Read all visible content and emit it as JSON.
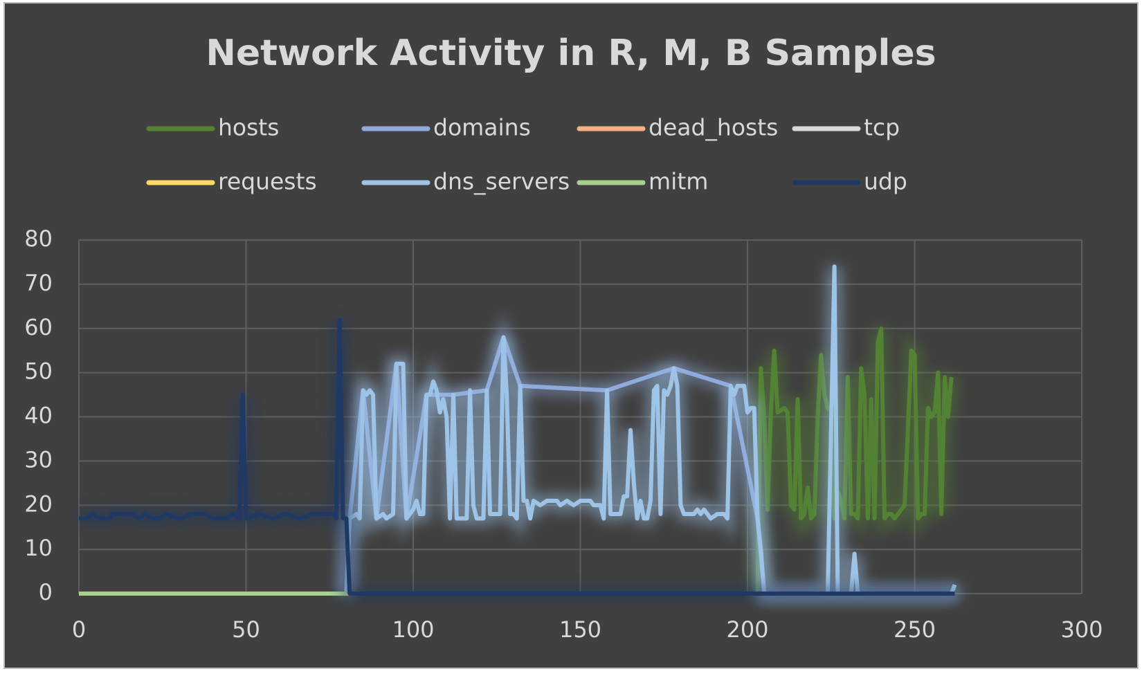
{
  "chart_data": {
    "type": "line",
    "title": "Network Activity in R, M, B Samples",
    "xlim": [
      0,
      300
    ],
    "xticks": [
      0,
      50,
      100,
      150,
      200,
      250,
      300
    ],
    "ylim": [
      0,
      80
    ],
    "yticks": [
      0,
      10,
      20,
      30,
      40,
      50,
      60,
      70,
      80
    ],
    "grid": true,
    "legend_position": "top",
    "series": [
      {
        "name": "hosts",
        "color": "#548235",
        "x": [
          203,
          204,
          205,
          206,
          207,
          208,
          209,
          211,
          212,
          213,
          214,
          215,
          216,
          217,
          218,
          219,
          220,
          221,
          222,
          223,
          224,
          225,
          226,
          227,
          228,
          229,
          230,
          231,
          232,
          233,
          234,
          235,
          236,
          237,
          238,
          239,
          240,
          241,
          242,
          243,
          244,
          245,
          247,
          249,
          250,
          251,
          252,
          253,
          254,
          255,
          256,
          257,
          258,
          259,
          260,
          261
        ],
        "values": [
          0,
          51,
          40,
          19,
          41,
          55,
          41,
          42,
          41,
          20,
          19,
          44,
          17,
          18,
          24,
          17,
          18,
          40,
          54,
          45,
          42,
          41,
          17,
          23,
          21,
          17,
          49,
          18,
          18,
          17,
          51,
          45,
          17,
          44,
          17,
          57,
          60,
          17,
          18,
          18,
          17,
          18,
          20,
          55,
          54,
          17,
          18,
          18,
          42,
          40,
          41,
          50,
          18,
          49,
          40,
          49
        ]
      },
      {
        "name": "domains",
        "color": "#8faadc",
        "x": [
          80,
          81,
          85,
          89,
          95,
          98,
          104,
          112,
          122,
          127,
          132,
          158,
          178,
          195,
          203,
          205,
          262
        ],
        "values": [
          0,
          17,
          46,
          17,
          52,
          17,
          45,
          45,
          46,
          58,
          47,
          46,
          51,
          47,
          17,
          0,
          0
        ]
      },
      {
        "name": "dead_hosts",
        "color": "#f4b183",
        "x": [
          0,
          262
        ],
        "values": [
          0,
          0
        ]
      },
      {
        "name": "tcp",
        "color": "#d9d9d9",
        "x": [
          0,
          262
        ],
        "values": [
          0,
          0
        ]
      },
      {
        "name": "requests",
        "color": "#ffd966",
        "x": [
          0,
          262
        ],
        "values": [
          0,
          0
        ]
      },
      {
        "name": "dns_servers",
        "color": "#9dc3e6",
        "x": [
          80,
          81,
          83,
          84,
          85,
          86,
          87,
          88,
          89,
          91,
          92,
          94,
          95,
          97,
          98,
          100,
          101,
          102,
          103,
          104,
          105,
          106,
          107,
          108,
          109,
          110,
          111,
          112,
          113,
          116,
          117,
          118,
          119,
          121,
          122,
          123,
          126,
          127,
          128,
          129,
          130,
          131,
          132,
          133,
          134,
          135,
          136,
          138,
          140,
          143,
          144,
          146,
          148,
          150,
          153,
          154,
          156,
          157,
          158,
          159,
          162,
          163,
          164,
          165,
          166,
          167,
          168,
          169,
          170,
          171,
          172,
          173,
          174,
          175,
          176,
          177,
          178,
          179,
          180,
          181,
          184,
          185,
          186,
          187,
          189,
          191,
          193,
          194,
          195,
          196,
          197,
          199,
          200,
          201,
          202,
          203,
          204,
          205,
          224,
          226,
          227,
          231,
          232,
          233,
          261,
          262
        ],
        "values": [
          0,
          17,
          18,
          17,
          46,
          45,
          46,
          45,
          17,
          18,
          17,
          18,
          52,
          52,
          17,
          19,
          21,
          18,
          18,
          45,
          45,
          48,
          46,
          41,
          44,
          40,
          17,
          45,
          17,
          17,
          46,
          20,
          17,
          17,
          46,
          18,
          18,
          58,
          45,
          18,
          18,
          17,
          47,
          21,
          21,
          17,
          21,
          20,
          21,
          21,
          20,
          21,
          20,
          21,
          21,
          20,
          20,
          17,
          46,
          18,
          18,
          22,
          22,
          37,
          25,
          17,
          21,
          17,
          17,
          21,
          46,
          47,
          18,
          46,
          45,
          47,
          51,
          47,
          20,
          18,
          18,
          19,
          18,
          19,
          17,
          18,
          18,
          17,
          47,
          45,
          47,
          47,
          41,
          42,
          42,
          17,
          10,
          0,
          0,
          74,
          0,
          0,
          9,
          0,
          0,
          2
        ]
      },
      {
        "name": "mitm",
        "color": "#a9d18e",
        "x": [
          0,
          80
        ],
        "values": [
          0,
          0
        ]
      },
      {
        "name": "udp",
        "color": "#1f3864",
        "x": [
          0,
          2,
          4,
          6,
          9,
          10,
          16,
          18,
          20,
          22,
          24,
          26,
          30,
          34,
          38,
          40,
          44,
          46,
          48,
          49,
          50,
          54,
          58,
          62,
          66,
          70,
          76,
          77,
          78,
          79,
          80,
          81,
          262
        ],
        "values": [
          17,
          17,
          18,
          17,
          17,
          18,
          18,
          17,
          18,
          17,
          17,
          18,
          17,
          18,
          18,
          17,
          17,
          18,
          17,
          45,
          17,
          18,
          17,
          18,
          17,
          18,
          18,
          17,
          62,
          17,
          17,
          0,
          0
        ]
      }
    ]
  }
}
